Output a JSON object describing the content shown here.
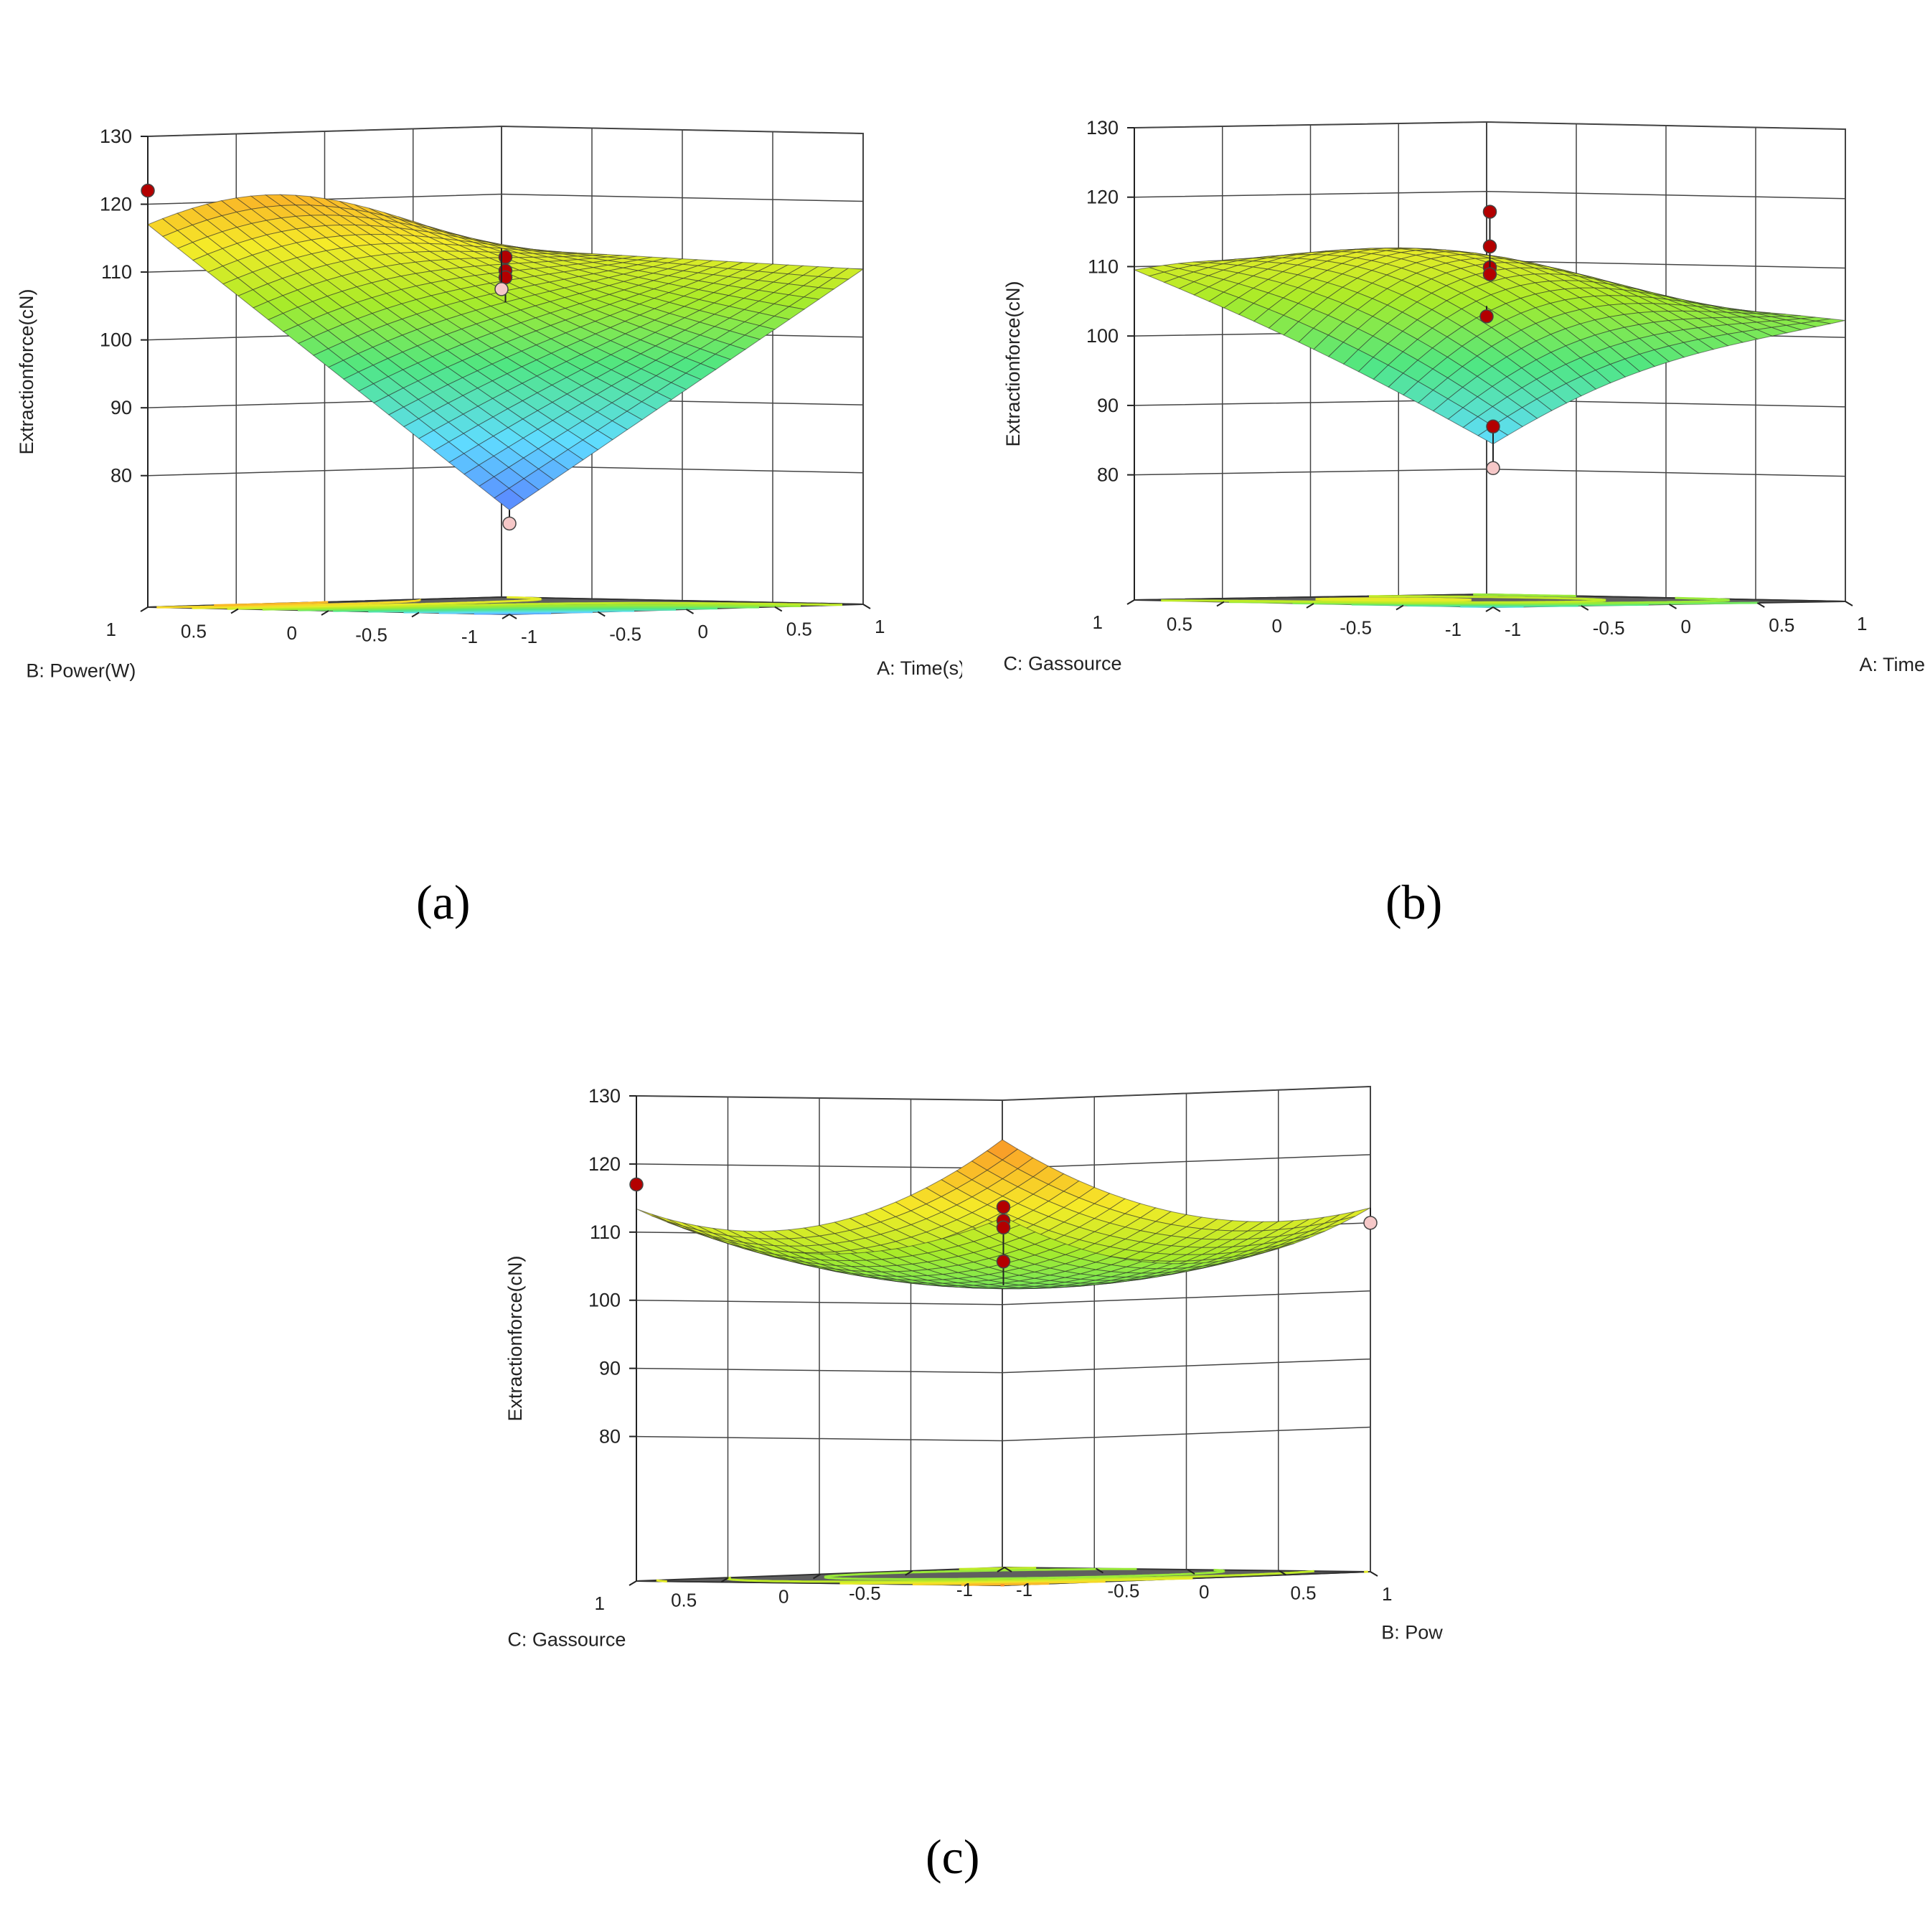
{
  "figure": {
    "captions": [
      "(a)",
      "(b)",
      "(c)"
    ]
  },
  "colors": {
    "floor": "#5f5f5f",
    "grid": "#444444",
    "design_point_high": "#b30000",
    "design_point_low": "#f6c8c8"
  },
  "chart_data": [
    {
      "type": "surface",
      "panel": "a",
      "zlabel": "Extractionforce(cN)",
      "xlabel": "A: Time(s)",
      "ylabel": "B: Power(W)",
      "xlim": [
        -1,
        1
      ],
      "ylim": [
        -1,
        1
      ],
      "zlim": [
        75,
        130
      ],
      "zticks": [
        80,
        90,
        100,
        110,
        120,
        130
      ],
      "xticks": [
        -1,
        -0.5,
        0,
        0.5,
        1
      ],
      "yticks": [
        -1,
        -0.5,
        0,
        0.5,
        1
      ],
      "surface_corners": {
        "x-1_y-1": 76,
        "x1_y-1": 110,
        "x-1_y1": 117,
        "x1_y1": 112
      },
      "surface_peak": {
        "x": -0.8,
        "y": 0.7,
        "z": 120
      },
      "design_points": [
        {
          "x": -1,
          "y": 1,
          "z": 122,
          "above": true
        },
        {
          "x": 0,
          "y": 0,
          "z": 112,
          "above": true
        },
        {
          "x": 0,
          "y": 0,
          "z": 110,
          "above": true
        },
        {
          "x": 0,
          "y": 0,
          "z": 109,
          "above": true
        },
        {
          "x": 1,
          "y": 1,
          "z": 106,
          "above": false
        },
        {
          "x": -1,
          "y": -1,
          "z": 74,
          "above": false
        }
      ]
    },
    {
      "type": "surface",
      "panel": "b",
      "zlabel": "Extractionforce(cN)",
      "xlabel": "A: Time(s)",
      "ylabel": "C: Gassource",
      "xlim": [
        -1,
        1
      ],
      "ylim": [
        -1,
        1
      ],
      "zlim": [
        75,
        130
      ],
      "zticks": [
        80,
        90,
        100,
        110,
        120,
        130
      ],
      "xticks": [
        -1,
        -0.5,
        0,
        0.5,
        1
      ],
      "yticks": [
        -1,
        -0.5,
        0,
        0.5,
        1
      ],
      "surface_corners": {
        "x-1_y-1": 85,
        "x1_y-1": 102,
        "x-1_y1": 109,
        "x1_y1": 103
      },
      "surface_peak": {
        "x": -0.3,
        "y": 0.5,
        "z": 120
      },
      "design_points": [
        {
          "x": 0,
          "y": 0,
          "z": 118,
          "above": true
        },
        {
          "x": 0,
          "y": 0,
          "z": 113,
          "above": true
        },
        {
          "x": 0,
          "y": 0,
          "z": 110,
          "above": true
        },
        {
          "x": 0,
          "y": 0,
          "z": 109,
          "above": true
        },
        {
          "x": 1,
          "y": 1,
          "z": 102,
          "above": true
        },
        {
          "x": -1,
          "y": -1,
          "z": 88,
          "above": true
        },
        {
          "x": -1,
          "y": -1,
          "z": 82,
          "above": false
        }
      ]
    },
    {
      "type": "surface",
      "panel": "c",
      "zlabel": "Extractionforce(cN)",
      "xlabel": "B: Power(W)",
      "ylabel": "C: Gassource",
      "xlim": [
        -1,
        1
      ],
      "ylim": [
        -1,
        1
      ],
      "zlim": [
        75,
        130
      ],
      "zticks": [
        80,
        90,
        100,
        110,
        120,
        130
      ],
      "xticks": [
        -1,
        -0.5,
        0,
        0.5,
        1
      ],
      "yticks": [
        -1,
        -0.5,
        0,
        0.5,
        1
      ],
      "surface_corners": {
        "x-1_y-1": 101,
        "x1_y-1": 112,
        "x-1_y1": 114,
        "x1_y1": 129
      },
      "surface_min": {
        "x": 0,
        "y": -0.2,
        "z": 101
      },
      "design_points": [
        {
          "x": -1,
          "y": 1,
          "z": 117,
          "above": true
        },
        {
          "x": 0,
          "y": 0,
          "z": 113,
          "above": true
        },
        {
          "x": 0,
          "y": 0,
          "z": 111,
          "above": true
        },
        {
          "x": 0,
          "y": 0,
          "z": 110,
          "above": true
        },
        {
          "x": 0,
          "y": 0,
          "z": 105,
          "above": true
        },
        {
          "x": 1,
          "y": -1,
          "z": 110,
          "above": false
        }
      ]
    }
  ]
}
